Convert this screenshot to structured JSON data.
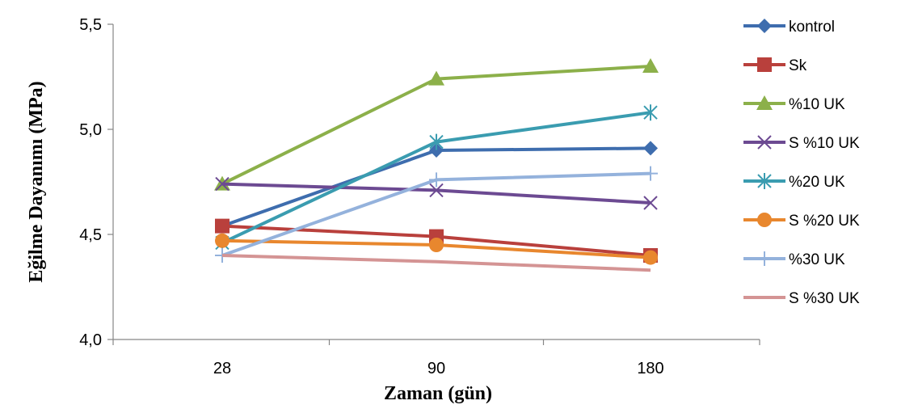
{
  "chart_data": {
    "type": "line",
    "title": "",
    "xlabel": "Zaman (gün)",
    "ylabel": "Eğilme Dayanımı (MPa)",
    "categories": [
      "28",
      "90",
      "180"
    ],
    "ylim": [
      4.0,
      5.5
    ],
    "yticks": [
      "4,0",
      "4,5",
      "5,0",
      "5,5"
    ],
    "ytick_values": [
      4.0,
      4.5,
      5.0,
      5.5
    ],
    "grid": false,
    "legend_position": "right",
    "series": [
      {
        "name": "kontrol",
        "values": [
          4.54,
          4.9,
          4.91
        ],
        "color": "#3E6DAE",
        "marker": "diamond"
      },
      {
        "name": "Sk",
        "values": [
          4.54,
          4.49,
          4.4
        ],
        "color": "#B9403C",
        "marker": "square"
      },
      {
        "name": "%10 UK",
        "values": [
          4.74,
          5.24,
          5.3
        ],
        "color": "#8CB04A",
        "marker": "triangle"
      },
      {
        "name": "S %10 UK",
        "values": [
          4.74,
          4.71,
          4.65
        ],
        "color": "#6C4A92",
        "marker": "x"
      },
      {
        "name": "%20 UK",
        "values": [
          4.46,
          4.94,
          5.08
        ],
        "color": "#3A9CB0",
        "marker": "star"
      },
      {
        "name": "S %20 UK",
        "values": [
          4.47,
          4.45,
          4.39
        ],
        "color": "#E8872E",
        "marker": "circle"
      },
      {
        "name": "%30 UK",
        "values": [
          4.4,
          4.76,
          4.79
        ],
        "color": "#94B2DC",
        "marker": "plus"
      },
      {
        "name": "S %30 UK",
        "values": [
          4.4,
          4.37,
          4.33
        ],
        "color": "#D49494",
        "marker": "none"
      }
    ]
  }
}
